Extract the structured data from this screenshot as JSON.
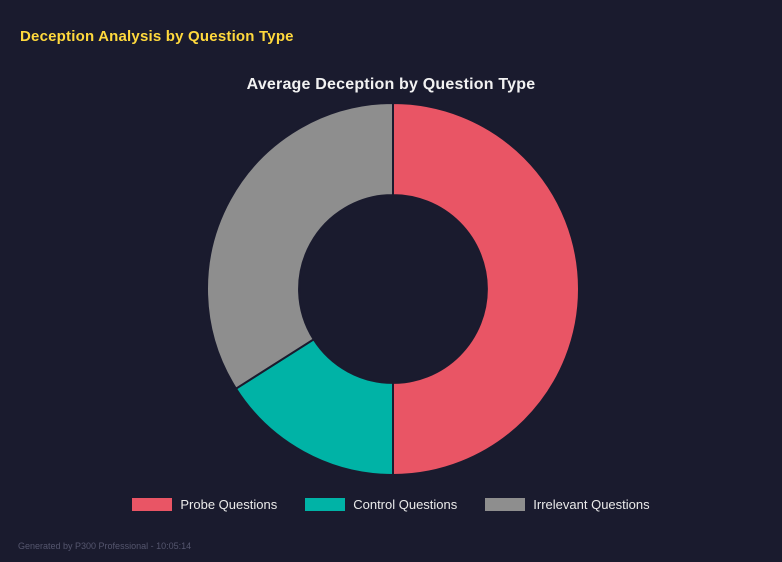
{
  "header": {
    "title": "Deception Analysis by Question Type"
  },
  "theme": {
    "background": "#1a1b2e",
    "header_title_color": "#ffd93d",
    "chart_title_color": "#f2f2f2",
    "legend_text_color": "#eaeaea",
    "footer_text_color": "#55566e"
  },
  "chart_data": {
    "type": "pie",
    "variant": "doughnut",
    "title": "Average Deception by Question Type",
    "categories": [
      "Probe Questions",
      "Control Questions",
      "Irrelevant Questions"
    ],
    "values": [
      50,
      16,
      34
    ],
    "values_note": "estimated percent of circle read from segment angles",
    "colors": [
      "#e95565",
      "#00b3a6",
      "#8e8e8e"
    ],
    "border_color": "#1a1b2e",
    "border_width": 2,
    "legend_position": "bottom",
    "start_angle_deg": 0,
    "direction": "clockwise",
    "inner_radius_ratio": 0.505
  },
  "footer": {
    "note": "Generated by P300 Professional - 10:05:14"
  }
}
